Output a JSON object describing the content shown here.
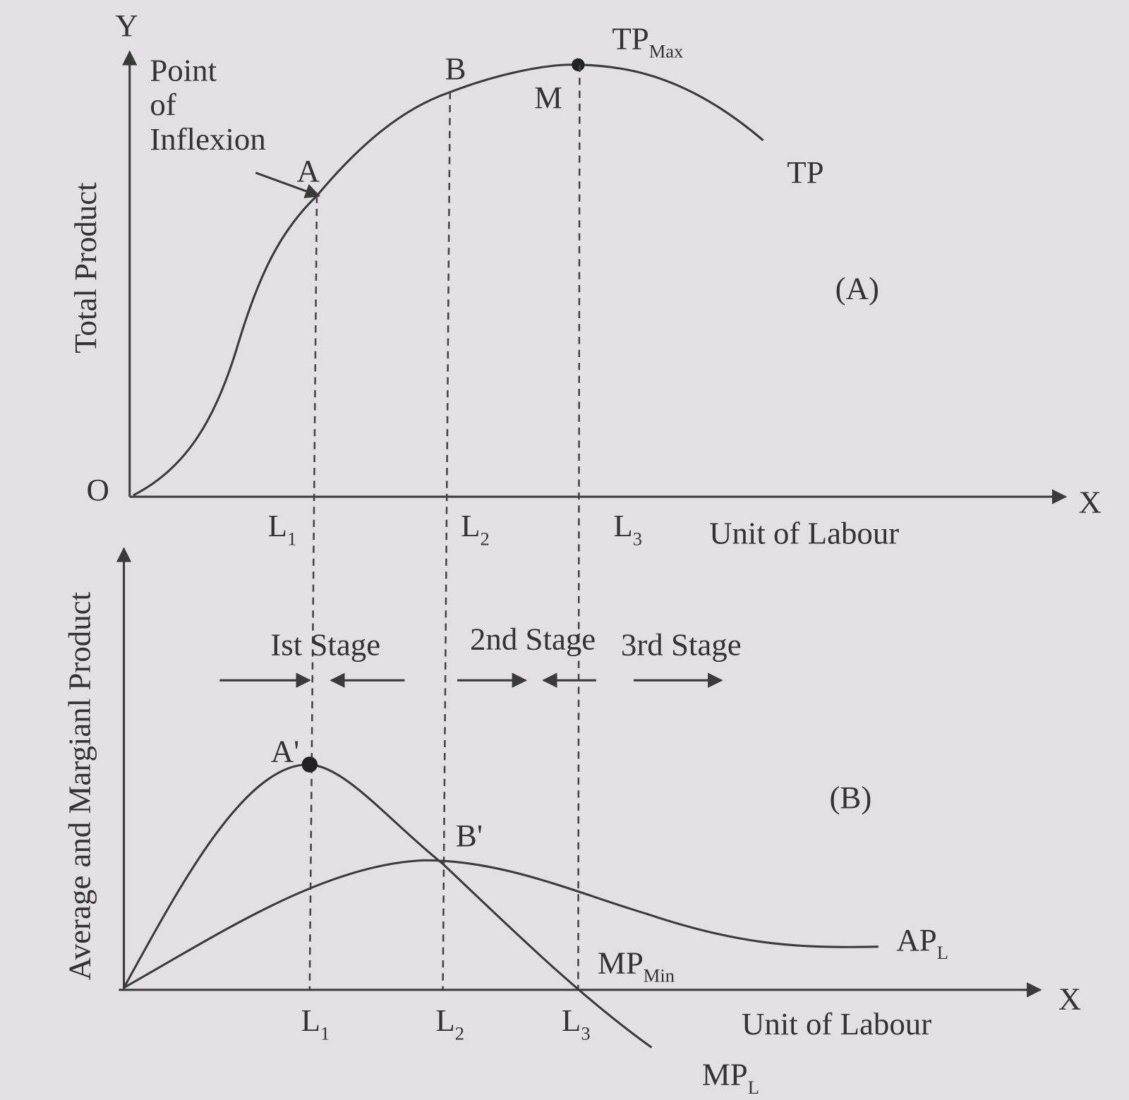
{
  "panel_a": {
    "y_axis_letter": "Y",
    "y_axis_label": "Total Product",
    "origin": "O",
    "x_axis_letter": "X",
    "x_axis_label": "Unit of Labour",
    "inflexion_label": [
      "Point",
      "of",
      "Inflexion"
    ],
    "point_a": "A",
    "point_b": "B",
    "point_m": "M",
    "tp_max": {
      "main": "TP",
      "sub": "Max"
    },
    "curve_label": "TP",
    "panel_label": "(A)",
    "ticks": [
      {
        "main": "L",
        "sub": "1"
      },
      {
        "main": "L",
        "sub": "2"
      },
      {
        "main": "L",
        "sub": "3"
      }
    ]
  },
  "panel_b": {
    "y_axis_label": "Average and Margianl Product",
    "x_axis_letter": "X",
    "x_axis_label": "Unit of Labour",
    "stages": [
      "Ist Stage",
      "2nd Stage",
      "3rd Stage"
    ],
    "point_a": "A'",
    "point_b": "B'",
    "mp_min": {
      "main": "MP",
      "sub": "Min"
    },
    "ap_label": {
      "main": "AP",
      "sub": "L"
    },
    "mp_label": {
      "main": "MP",
      "sub": "L"
    },
    "panel_label": "(B)",
    "ticks": [
      {
        "main": "L",
        "sub": "1"
      },
      {
        "main": "L",
        "sub": "2"
      },
      {
        "main": "L",
        "sub": "3"
      }
    ]
  }
}
